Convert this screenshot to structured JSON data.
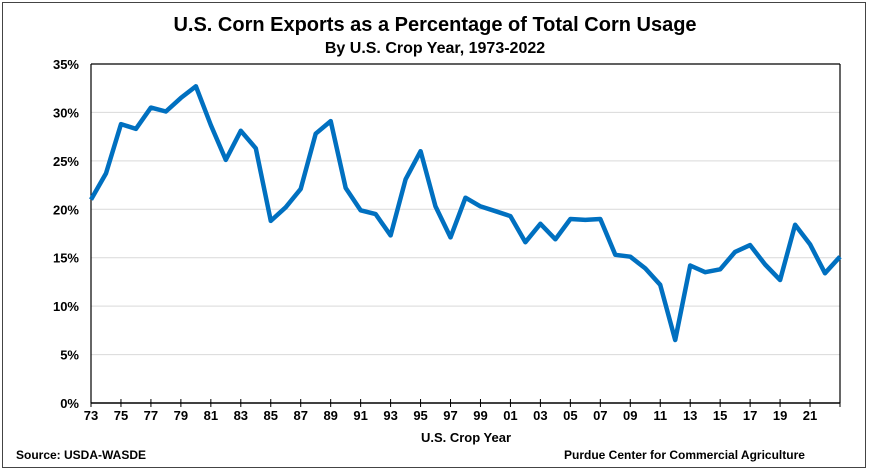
{
  "chart_data": {
    "type": "line",
    "title": "U.S. Corn Exports as a Percentage of Total Corn Usage",
    "subtitle": "By U.S. Crop Year, 1973-2022",
    "xlabel": "U.S. Crop Year",
    "ylabel": "",
    "ylim": [
      0,
      35
    ],
    "xlim": [
      1973,
      2023
    ],
    "y_ticks": [
      "0%",
      "5%",
      "10%",
      "15%",
      "20%",
      "25%",
      "30%",
      "35%"
    ],
    "x_tick_labels": [
      "73",
      "75",
      "77",
      "79",
      "81",
      "83",
      "85",
      "87",
      "89",
      "91",
      "93",
      "95",
      "97",
      "99",
      "01",
      "03",
      "05",
      "07",
      "09",
      "11",
      "13",
      "15",
      "17",
      "19",
      "21"
    ],
    "grid": "horizontal",
    "line_color": "#0070C0",
    "x": [
      1973,
      1974,
      1975,
      1976,
      1977,
      1978,
      1979,
      1980,
      1981,
      1982,
      1983,
      1984,
      1985,
      1986,
      1987,
      1988,
      1989,
      1990,
      1991,
      1992,
      1993,
      1994,
      1995,
      1996,
      1997,
      1998,
      1999,
      2000,
      2001,
      2002,
      2003,
      2004,
      2005,
      2006,
      2007,
      2008,
      2009,
      2010,
      2011,
      2012,
      2013,
      2014,
      2015,
      2016,
      2017,
      2018,
      2019,
      2020,
      2021,
      2022,
      2023
    ],
    "values": [
      21.0,
      23.7,
      28.8,
      28.3,
      30.5,
      30.1,
      31.5,
      32.7,
      28.7,
      25.1,
      28.1,
      26.3,
      18.8,
      20.2,
      22.1,
      27.8,
      29.1,
      22.2,
      19.9,
      19.5,
      17.3,
      23.1,
      26.0,
      20.3,
      17.1,
      21.2,
      20.3,
      19.8,
      19.3,
      16.6,
      18.5,
      16.9,
      19.0,
      18.9,
      19.0,
      15.3,
      15.1,
      13.9,
      12.2,
      6.5,
      14.2,
      13.5,
      13.8,
      15.6,
      16.3,
      14.3,
      12.7,
      18.4,
      16.4,
      13.4,
      15.1
    ]
  },
  "footer": {
    "source": "Source: USDA-WASDE",
    "credit": "Purdue Center for Commercial Agriculture"
  }
}
